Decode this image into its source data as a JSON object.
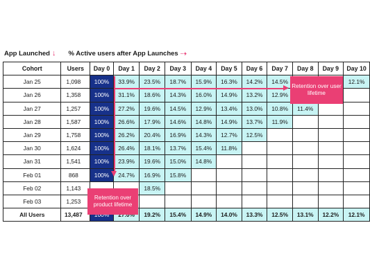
{
  "header": {
    "left_label": "App Launched",
    "left_arrow": "↓",
    "right_label": "% Active users after App Launches",
    "right_arrow": "⇢"
  },
  "chart_data": {
    "type": "table",
    "columns": [
      "Cohort",
      "Users",
      "Day 0",
      "Day 1",
      "Day 2",
      "Day 3",
      "Day 4",
      "Day 5",
      "Day 6",
      "Day 7",
      "Day 8",
      "Day 9",
      "Day 10"
    ],
    "rows": [
      {
        "cohort": "Jan 25",
        "users": "1,098",
        "days": [
          "100%",
          "33.9%",
          "23.5%",
          "18.7%",
          "15.9%",
          "16.3%",
          "14.2%",
          "14.5%",
          "",
          "",
          "12.1%"
        ]
      },
      {
        "cohort": "Jan 26",
        "users": "1,358",
        "days": [
          "100%",
          "31.1%",
          "18.6%",
          "14.3%",
          "16.0%",
          "14.9%",
          "13.2%",
          "12.9%",
          "",
          "",
          ""
        ]
      },
      {
        "cohort": "Jan 27",
        "users": "1,257",
        "days": [
          "100%",
          "27.2%",
          "19.6%",
          "14.5%",
          "12.9%",
          "13.4%",
          "13.0%",
          "10.8%",
          "11.4%",
          "",
          ""
        ]
      },
      {
        "cohort": "Jan 28",
        "users": "1,587",
        "days": [
          "100%",
          "26.6%",
          "17.9%",
          "14.6%",
          "14.8%",
          "14.9%",
          "13.7%",
          "11.9%",
          "",
          "",
          ""
        ]
      },
      {
        "cohort": "Jan 29",
        "users": "1,758",
        "days": [
          "100%",
          "26.2%",
          "20.4%",
          "16.9%",
          "14.3%",
          "12.7%",
          "12.5%",
          "",
          "",
          "",
          ""
        ]
      },
      {
        "cohort": "Jan 30",
        "users": "1,624",
        "days": [
          "100%",
          "26.4%",
          "18.1%",
          "13.7%",
          "15.4%",
          "11.8%",
          "",
          "",
          "",
          "",
          ""
        ]
      },
      {
        "cohort": "Jan 31",
        "users": "1,541",
        "days": [
          "100%",
          "23.9%",
          "19.6%",
          "15.0%",
          "14.8%",
          "",
          "",
          "",
          "",
          "",
          ""
        ]
      },
      {
        "cohort": "Feb 01",
        "users": "868",
        "days": [
          "100%",
          "24.7%",
          "16.9%",
          "15.8%",
          "",
          "",
          "",
          "",
          "",
          "",
          ""
        ]
      },
      {
        "cohort": "Feb 02",
        "users": "1,143",
        "days": [
          "",
          "",
          "18.5%",
          "",
          "",
          "",
          "",
          "",
          "",
          "",
          ""
        ]
      },
      {
        "cohort": "Feb 03",
        "users": "1,253",
        "days": [
          "",
          "",
          "",
          "",
          "",
          "",
          "",
          "",
          "",
          "",
          ""
        ]
      }
    ],
    "total": {
      "cohort": "All Users",
      "users": "13,487",
      "days": [
        "100%",
        "27.0%",
        "19.2%",
        "15.4%",
        "14.9%",
        "14.0%",
        "13.3%",
        "12.5%",
        "13.1%",
        "12.2%",
        "12.1%"
      ]
    },
    "filled_day_counts": [
      11,
      8,
      9,
      8,
      7,
      6,
      5,
      4,
      3,
      1
    ],
    "callouts": {
      "user_lifetime": "Retention over user lifetime",
      "product_lifetime": "Retention over product lifetime"
    },
    "colors": {
      "day0": "#17318a",
      "filled": "#c8f4f4",
      "accent": "#ea3f74"
    }
  }
}
